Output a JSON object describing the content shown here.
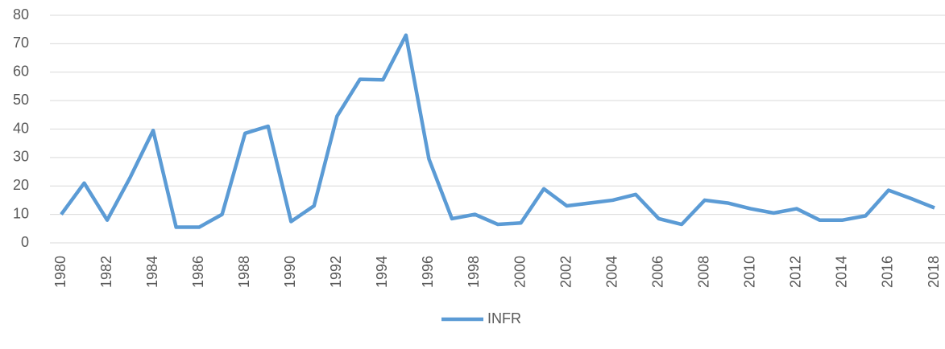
{
  "chart_data": {
    "type": "line",
    "x": [
      1980,
      1981,
      1982,
      1983,
      1984,
      1985,
      1986,
      1987,
      1988,
      1989,
      1990,
      1991,
      1992,
      1993,
      1994,
      1995,
      1996,
      1997,
      1998,
      1999,
      2000,
      2001,
      2002,
      2003,
      2004,
      2005,
      2006,
      2007,
      2008,
      2009,
      2010,
      2011,
      2012,
      2013,
      2014,
      2015,
      2016,
      2017,
      2018
    ],
    "series": [
      {
        "name": "INFR",
        "color": "#5b9bd5",
        "values": [
          10,
          21,
          8,
          23,
          39.5,
          5.5,
          5.5,
          10,
          38.5,
          41,
          7.5,
          13,
          44.5,
          57.5,
          57.3,
          73,
          29.5,
          8.5,
          10,
          6.5,
          7,
          19,
          13,
          14,
          15,
          17,
          8.5,
          6.5,
          15,
          14,
          12,
          10.5,
          12,
          8,
          8,
          9.5,
          18.5,
          15.5,
          12.3
        ]
      }
    ],
    "xlim": [
      1980,
      2018
    ],
    "xticks": [
      1980,
      1982,
      1984,
      1986,
      1988,
      1990,
      1992,
      1994,
      1996,
      1998,
      2000,
      2002,
      2004,
      2006,
      2008,
      2010,
      2012,
      2014,
      2016,
      2018
    ],
    "ylim": [
      0,
      80
    ],
    "yticks": [
      0,
      10,
      20,
      30,
      40,
      50,
      60,
      70,
      80
    ],
    "grid": true,
    "legend": "bottom"
  }
}
